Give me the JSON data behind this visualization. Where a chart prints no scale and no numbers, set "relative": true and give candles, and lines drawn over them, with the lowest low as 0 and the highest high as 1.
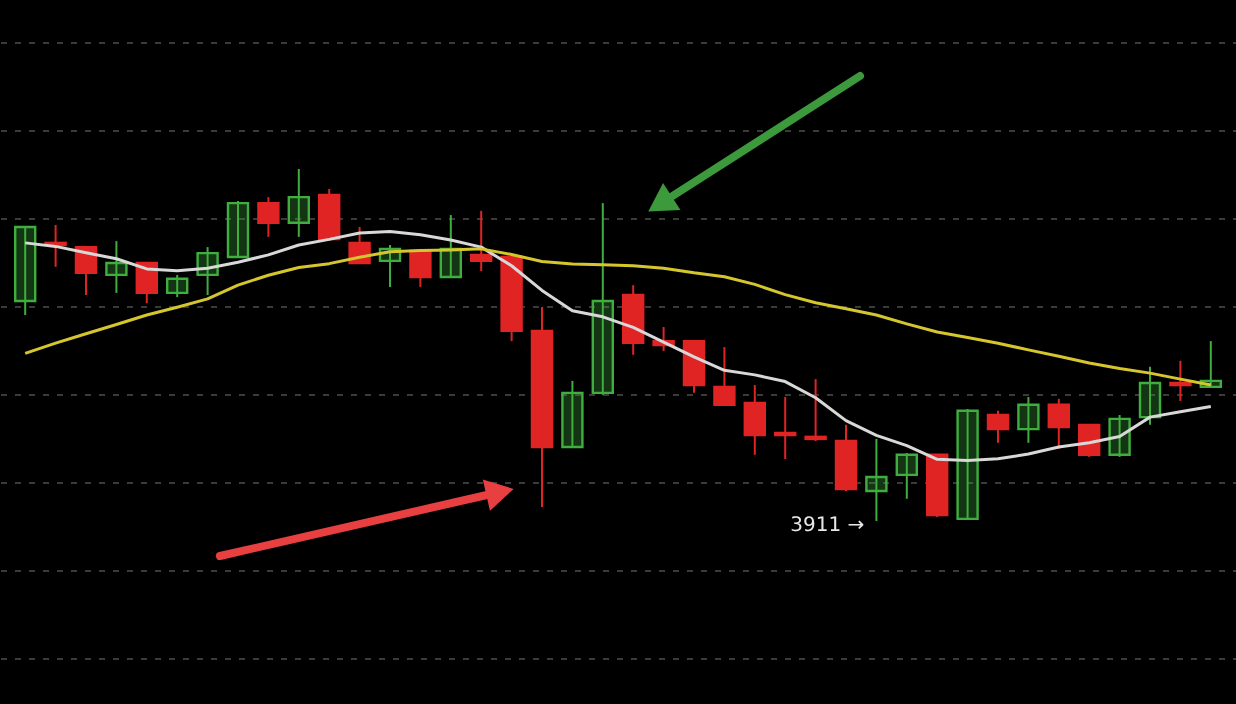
{
  "chart_data": {
    "type": "candlestick",
    "relative": true,
    "grid": "y",
    "categories": [
      null,
      null,
      null,
      null,
      null,
      null,
      null,
      null,
      null,
      null,
      null,
      null,
      null,
      null,
      null,
      null,
      null,
      null,
      null,
      null,
      null,
      null,
      null,
      null,
      null,
      null,
      null,
      null,
      null,
      null,
      null,
      null,
      null,
      null,
      null,
      null,
      null,
      null,
      null,
      null
    ],
    "ohlc": [
      [
        0.625,
        0.835,
        0.585,
        0.835
      ],
      [
        0.79,
        0.841,
        0.722,
        0.784
      ],
      [
        0.778,
        0.778,
        0.642,
        0.705
      ],
      [
        0.699,
        0.795,
        0.648,
        0.733
      ],
      [
        0.733,
        0.733,
        0.619,
        0.648
      ],
      [
        0.648,
        0.699,
        0.636,
        0.688
      ],
      [
        0.699,
        0.778,
        0.642,
        0.761
      ],
      [
        0.75,
        0.909,
        0.75,
        0.903
      ],
      [
        0.903,
        0.92,
        0.807,
        0.847
      ],
      [
        0.847,
        1,
        0.807,
        0.92
      ],
      [
        0.926,
        0.943,
        0.801,
        0.801
      ],
      [
        0.79,
        0.835,
        0.733,
        0.733
      ],
      [
        0.739,
        0.784,
        0.665,
        0.773
      ],
      [
        0.767,
        0.773,
        0.665,
        0.693
      ],
      [
        0.693,
        0.869,
        0.693,
        0.773
      ],
      [
        0.756,
        0.881,
        0.71,
        0.739
      ],
      [
        0.75,
        0.75,
        0.511,
        0.54
      ],
      [
        0.54,
        0.608,
        0.04,
        0.21
      ],
      [
        0.21,
        0.398,
        0.21,
        0.364
      ],
      [
        0.364,
        0.903,
        0.358,
        0.625
      ],
      [
        0.642,
        0.67,
        0.472,
        0.506
      ],
      [
        0.511,
        0.551,
        0.483,
        0.5
      ],
      [
        0.511,
        0.511,
        0.364,
        0.386
      ],
      [
        0.381,
        0.494,
        0.33,
        0.33
      ],
      [
        0.335,
        0.386,
        0.188,
        0.244
      ],
      [
        0.25,
        0.352,
        0.176,
        0.244
      ],
      [
        0.239,
        0.403,
        0.227,
        0.233
      ],
      [
        0.227,
        0.273,
        0.085,
        0.091
      ],
      [
        0.085,
        0.233,
        0,
        0.125
      ],
      [
        0.131,
        0.193,
        0.063,
        0.188
      ],
      [
        0.188,
        0.188,
        0.011,
        0.017
      ],
      [
        0.006,
        0.318,
        0.006,
        0.313
      ],
      [
        0.301,
        0.313,
        0.222,
        0.261
      ],
      [
        0.261,
        0.352,
        0.222,
        0.33
      ],
      [
        0.33,
        0.347,
        0.205,
        0.267
      ],
      [
        0.273,
        0.273,
        0.182,
        0.188
      ],
      [
        0.188,
        0.301,
        0.182,
        0.29
      ],
      [
        0.295,
        0.438,
        0.273,
        0.392
      ],
      [
        0.392,
        0.455,
        0.341,
        0.386
      ],
      [
        0.381,
        0.511,
        0.381,
        0.398
      ]
    ],
    "colors": [
      "#3fae3f",
      "#e02424",
      "#e02424",
      "#3fae3f",
      "#e02424",
      "#3fae3f",
      "#3fae3f",
      "#3fae3f",
      "#e02424",
      "#3fae3f",
      "#e02424",
      "#e02424",
      "#3fae3f",
      "#e02424",
      "#3fae3f",
      "#e02424",
      "#e02424",
      "#e02424",
      "#3fae3f",
      "#3fae3f",
      "#e02424",
      "#e02424",
      "#e02424",
      "#e02424",
      "#e02424",
      "#e02424",
      "#e02424",
      "#e02424",
      "#3fae3f",
      "#3fae3f",
      "#e02424",
      "#3fae3f",
      "#e02424",
      "#3fae3f",
      "#e02424",
      "#e02424",
      "#3fae3f",
      "#3fae3f",
      "#e02424",
      "#3fae3f"
    ],
    "series": [
      {
        "type": "line",
        "color": "#d8d8d8",
        "values": [
          0.79,
          0.78,
          0.762,
          0.745,
          0.716,
          0.711,
          0.718,
          0.735,
          0.756,
          0.784,
          0.8,
          0.818,
          0.822,
          0.813,
          0.798,
          0.778,
          0.725,
          0.655,
          0.597,
          0.58,
          0.55,
          0.508,
          0.466,
          0.428,
          0.415,
          0.396,
          0.35,
          0.285,
          0.243,
          0.214,
          0.175,
          0.172,
          0.177,
          0.19,
          0.21,
          0.222,
          0.24,
          0.295,
          0.31,
          0.325
        ]
      },
      {
        "type": "line",
        "color": "#d6c62e",
        "values": [
          0.476,
          0.505,
          0.532,
          0.558,
          0.585,
          0.607,
          0.631,
          0.67,
          0.698,
          0.72,
          0.731,
          0.749,
          0.765,
          0.768,
          0.77,
          0.773,
          0.757,
          0.737,
          0.73,
          0.728,
          0.725,
          0.718,
          0.705,
          0.694,
          0.672,
          0.643,
          0.62,
          0.603,
          0.585,
          0.56,
          0.537,
          0.521,
          0.505,
          0.486,
          0.468,
          0.449,
          0.433,
          0.42,
          0.403,
          0.386
        ]
      }
    ],
    "annotations": [
      "3911 →"
    ]
  }
}
